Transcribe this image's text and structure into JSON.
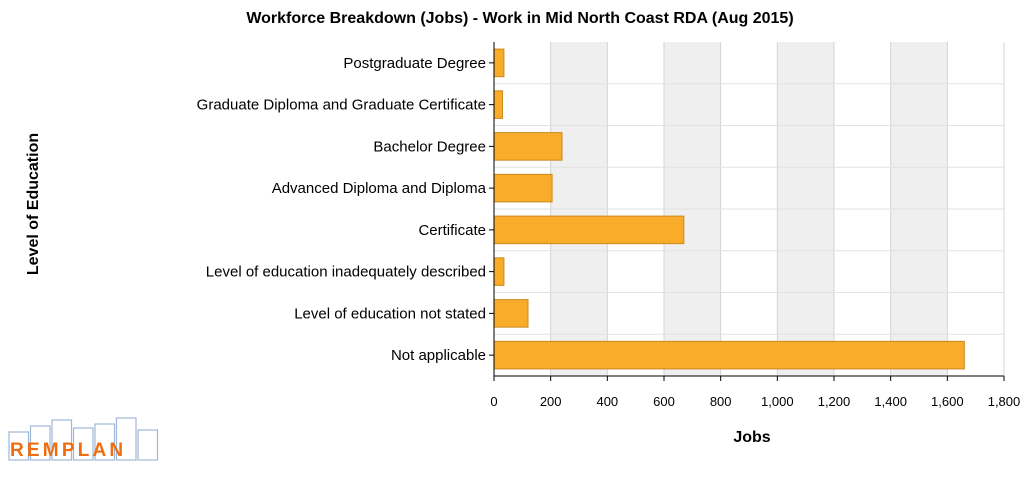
{
  "chart_data": {
    "type": "bar",
    "orientation": "horizontal",
    "title": "Workforce Breakdown (Jobs) - Work in Mid North Coast RDA (Aug 2015)",
    "xlabel": "Jobs",
    "ylabel": "Level of Education",
    "categories": [
      "Postgraduate Degree",
      "Graduate Diploma and Graduate Certificate",
      "Bachelor Degree",
      "Advanced Diploma and Diploma",
      "Certificate",
      "Level of education inadequately described",
      "Level of education not stated",
      "Not applicable"
    ],
    "values": [
      35,
      30,
      240,
      205,
      670,
      35,
      120,
      1660
    ],
    "xlim": [
      0,
      1800
    ],
    "xticks": [
      0,
      200,
      400,
      600,
      800,
      1000,
      1200,
      1400,
      1600,
      1800
    ],
    "xtick_labels": [
      "0",
      "200",
      "400",
      "600",
      "800",
      "1,000",
      "1,200",
      "1,400",
      "1,600",
      "1,800"
    ],
    "grid": true,
    "legend": "none",
    "colors": {
      "bar": "#f9ab2a",
      "bar_border": "#c98a1e",
      "band": "#efefef",
      "gridline": "#d4d4d4"
    }
  },
  "logo": {
    "text": "REMPLAN",
    "colors": {
      "letters": "#ef6c10",
      "boxes": "#9fb7d6"
    }
  }
}
